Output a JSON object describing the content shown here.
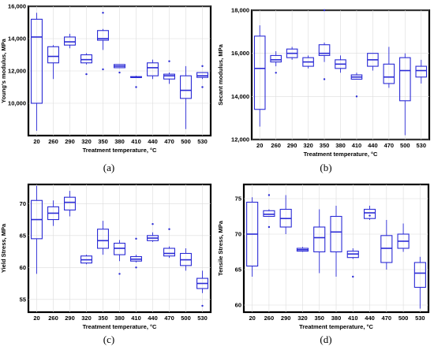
{
  "chart_data": [
    {
      "type": "box",
      "caption": "(a)",
      "ylabel": "Young's modulus, MPa",
      "xlabel": "Treatment temperature, °C",
      "ylim": [
        8000,
        16000
      ],
      "yticks": [
        "10,000",
        "12,000",
        "14,000",
        "16,000"
      ],
      "ytick_values": [
        10000,
        12000,
        14000,
        16000
      ],
      "categories": [
        "20",
        "260",
        "290",
        "320",
        "350",
        "380",
        "410",
        "440",
        "470",
        "500",
        "530"
      ],
      "boxes": [
        {
          "min": 8300,
          "q1": 10000,
          "median": 14100,
          "q3": 15200,
          "max": 15600,
          "outliers": []
        },
        {
          "min": 11500,
          "q1": 12500,
          "median": 12900,
          "q3": 13500,
          "max": 13600,
          "outliers": []
        },
        {
          "min": 13400,
          "q1": 13600,
          "median": 13800,
          "q3": 14100,
          "max": 14300,
          "outliers": []
        },
        {
          "min": 12400,
          "q1": 12500,
          "median": 12700,
          "q3": 13000,
          "max": 13100,
          "outliers": [
            11800
          ]
        },
        {
          "min": 13300,
          "q1": 13900,
          "median": 14000,
          "q3": 14500,
          "max": 14600,
          "outliers": [
            15600,
            12100
          ]
        },
        {
          "min": 12200,
          "q1": 12200,
          "median": 12300,
          "q3": 12400,
          "max": 12400,
          "outliers": [
            11900
          ]
        },
        {
          "min": 11600,
          "q1": 11600,
          "median": 11600,
          "q3": 11650,
          "max": 11700,
          "outliers": [
            11000
          ]
        },
        {
          "min": 11500,
          "q1": 11700,
          "median": 12200,
          "q3": 12500,
          "max": 12700,
          "outliers": []
        },
        {
          "min": 11200,
          "q1": 11500,
          "median": 11700,
          "q3": 11800,
          "max": 11900,
          "outliers": [
            12600
          ]
        },
        {
          "min": 8400,
          "q1": 10300,
          "median": 10800,
          "q3": 11700,
          "max": 12300,
          "outliers": []
        },
        {
          "min": 11500,
          "q1": 11600,
          "median": 11700,
          "q3": 11900,
          "max": 11900,
          "outliers": [
            12300,
            11000
          ]
        }
      ]
    },
    {
      "type": "box",
      "caption": "(b)",
      "ylabel": "Secant modulus, MPa",
      "xlabel": "Treatment temperature, °C",
      "ylim": [
        12000,
        18000
      ],
      "yticks": [
        "12,000",
        "14,000",
        "16,000",
        "18,000"
      ],
      "ytick_values": [
        12000,
        14000,
        16000,
        18000
      ],
      "categories": [
        "20",
        "260",
        "290",
        "320",
        "350",
        "380",
        "410",
        "440",
        "470",
        "500",
        "530"
      ],
      "boxes": [
        {
          "min": 12600,
          "q1": 13400,
          "median": 15300,
          "q3": 16800,
          "max": 17300,
          "outliers": []
        },
        {
          "min": 15400,
          "q1": 15600,
          "median": 15700,
          "q3": 15900,
          "max": 16100,
          "outliers": [
            15100
          ]
        },
        {
          "min": 15700,
          "q1": 15800,
          "median": 16000,
          "q3": 16200,
          "max": 16300,
          "outliers": []
        },
        {
          "min": 15300,
          "q1": 15400,
          "median": 15600,
          "q3": 15800,
          "max": 15900,
          "outliers": []
        },
        {
          "min": 15600,
          "q1": 15900,
          "median": 16000,
          "q3": 16400,
          "max": 16500,
          "outliers": [
            18000,
            14800
          ]
        },
        {
          "min": 15100,
          "q1": 15300,
          "median": 15500,
          "q3": 15700,
          "max": 15900,
          "outliers": []
        },
        {
          "min": 14800,
          "q1": 14800,
          "median": 14900,
          "q3": 15000,
          "max": 15100,
          "outliers": [
            14000
          ]
        },
        {
          "min": 15200,
          "q1": 15400,
          "median": 15700,
          "q3": 16000,
          "max": 16000,
          "outliers": []
        },
        {
          "min": 14400,
          "q1": 14600,
          "median": 14900,
          "q3": 15500,
          "max": 16300,
          "outliers": []
        },
        {
          "min": 12200,
          "q1": 13800,
          "median": 15200,
          "q3": 15800,
          "max": 16000,
          "outliers": []
        },
        {
          "min": 14600,
          "q1": 14900,
          "median": 15200,
          "q3": 15400,
          "max": 15700,
          "outliers": []
        }
      ]
    },
    {
      "type": "box",
      "caption": "(c)",
      "ylabel": "Yield Stress, MPa",
      "xlabel": "Treatment temperature, °C",
      "ylim": [
        53,
        73
      ],
      "yticks": [
        "55",
        "60",
        "65",
        "70"
      ],
      "ytick_values": [
        55,
        60,
        65,
        70
      ],
      "categories": [
        "20",
        "260",
        "290",
        "320",
        "350",
        "380",
        "410",
        "440",
        "470",
        "500",
        "530"
      ],
      "boxes": [
        {
          "min": 59,
          "q1": 64.5,
          "median": 67.5,
          "q3": 70.5,
          "max": 72.8,
          "outliers": []
        },
        {
          "min": 66.5,
          "q1": 67.5,
          "median": 68.5,
          "q3": 69.5,
          "max": 70.5,
          "outliers": []
        },
        {
          "min": 68,
          "q1": 69,
          "median": 70.2,
          "q3": 71,
          "max": 72,
          "outliers": []
        },
        {
          "min": 60.5,
          "q1": 60.7,
          "median": 61.2,
          "q3": 61.8,
          "max": 62,
          "outliers": []
        },
        {
          "min": 62,
          "q1": 63,
          "median": 64.2,
          "q3": 66,
          "max": 67.3,
          "outliers": []
        },
        {
          "min": 61,
          "q1": 62,
          "median": 63,
          "q3": 63.8,
          "max": 64.3,
          "outliers": [
            59
          ]
        },
        {
          "min": 60.8,
          "q1": 61,
          "median": 61.3,
          "q3": 61.7,
          "max": 62,
          "outliers": [
            64.5,
            60
          ]
        },
        {
          "min": 64,
          "q1": 64.2,
          "median": 64.6,
          "q3": 65,
          "max": 65.5,
          "outliers": [
            66.8
          ]
        },
        {
          "min": 61.5,
          "q1": 61.8,
          "median": 62.2,
          "q3": 63,
          "max": 63.3,
          "outliers": [
            66
          ]
        },
        {
          "min": 59.5,
          "q1": 60.3,
          "median": 61.2,
          "q3": 62.2,
          "max": 63,
          "outliers": []
        },
        {
          "min": 56,
          "q1": 56.7,
          "median": 57.5,
          "q3": 58.3,
          "max": 59.5,
          "outliers": [
            54
          ]
        }
      ]
    },
    {
      "type": "box",
      "caption": "(d)",
      "ylabel": "Tensile Stress, MPa",
      "xlabel": "Treatment temperature, °C",
      "ylim": [
        59,
        77
      ],
      "yticks": [
        "60",
        "65",
        "70",
        "75"
      ],
      "ytick_values": [
        60,
        65,
        70,
        75
      ],
      "categories": [
        "20",
        "260",
        "290",
        "320",
        "350",
        "380",
        "410",
        "440",
        "470",
        "500",
        "530"
      ],
      "boxes": [
        {
          "min": 64,
          "q1": 65.5,
          "median": 70,
          "q3": 74.5,
          "max": 75.2,
          "outliers": []
        },
        {
          "min": 72.5,
          "q1": 72.5,
          "median": 72.8,
          "q3": 73.3,
          "max": 73.5,
          "outliers": [
            75.5,
            71
          ]
        },
        {
          "min": 70,
          "q1": 71,
          "median": 72.2,
          "q3": 73.5,
          "max": 75.5,
          "outliers": []
        },
        {
          "min": 67.5,
          "q1": 67.6,
          "median": 67.8,
          "q3": 68,
          "max": 68.2,
          "outliers": []
        },
        {
          "min": 64.5,
          "q1": 67.5,
          "median": 69.5,
          "q3": 71,
          "max": 73.5,
          "outliers": []
        },
        {
          "min": 64,
          "q1": 67.5,
          "median": 70.3,
          "q3": 72.5,
          "max": 74,
          "outliers": []
        },
        {
          "min": 66.5,
          "q1": 66.7,
          "median": 67.2,
          "q3": 67.6,
          "max": 68,
          "outliers": [
            64
          ]
        },
        {
          "min": 72,
          "q1": 72.2,
          "median": 73,
          "q3": 73.5,
          "max": 74,
          "outliers": [
            72.6
          ]
        },
        {
          "min": 65,
          "q1": 66,
          "median": 68,
          "q3": 69.8,
          "max": 72,
          "outliers": []
        },
        {
          "min": 67.5,
          "q1": 68,
          "median": 69,
          "q3": 70,
          "max": 71.5,
          "outliers": []
        },
        {
          "min": 59.5,
          "q1": 62.5,
          "median": 64.5,
          "q3": 66,
          "max": 66.8,
          "outliers": []
        }
      ]
    }
  ]
}
